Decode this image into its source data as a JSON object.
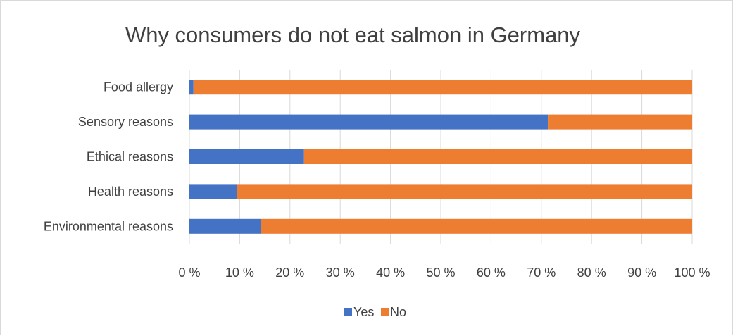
{
  "chart_data": {
    "type": "bar",
    "orientation": "horizontal",
    "stacked": "percent",
    "title": "Why consumers do not eat salmon in Germany",
    "categories": [
      "Food allergy",
      "Sensory reasons",
      "Ethical reasons",
      "Health reasons",
      "Environmental reasons"
    ],
    "series": [
      {
        "name": "Yes",
        "color": "#4472c4",
        "values": [
          0.8,
          71.3,
          22.8,
          9.5,
          14.2
        ]
      },
      {
        "name": "No",
        "color": "#ed7d31",
        "values": [
          99.2,
          28.7,
          77.2,
          90.5,
          85.8
        ]
      }
    ],
    "xlim": [
      0,
      100
    ],
    "xticks": [
      0,
      10,
      20,
      30,
      40,
      50,
      60,
      70,
      80,
      90,
      100
    ],
    "xtick_labels": [
      "0 %",
      "10 %",
      "20 %",
      "30 %",
      "40 %",
      "50 %",
      "60 %",
      "70 %",
      "80 %",
      "90 %",
      "100 %"
    ],
    "xlabel": "",
    "ylabel": "",
    "grid": true,
    "legend_position": "bottom"
  }
}
